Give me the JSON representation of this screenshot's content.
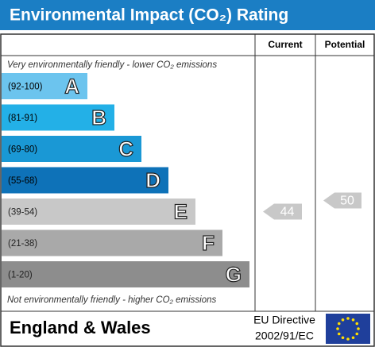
{
  "chart_data": {
    "type": "rating",
    "title": "Environmental Impact (CO₂) Rating",
    "columns": [
      "Current",
      "Potential"
    ],
    "top_note": "Very environmentally friendly - lower CO₂ emissions",
    "bottom_note": "Not environmentally friendly - higher CO₂ emissions",
    "bands": [
      {
        "range": "(92-100)",
        "letter": "A",
        "color": "#6cc4ee"
      },
      {
        "range": "(81-91)",
        "letter": "B",
        "color": "#23b0e7"
      },
      {
        "range": "(69-80)",
        "letter": "C",
        "color": "#1a98d5"
      },
      {
        "range": "(55-68)",
        "letter": "D",
        "color": "#0e72b8"
      },
      {
        "range": "(39-54)",
        "letter": "E",
        "color": "#c8c8c8"
      },
      {
        "range": "(21-38)",
        "letter": "F",
        "color": "#a9a9a9"
      },
      {
        "range": "(1-20)",
        "letter": "G",
        "color": "#8d8d8d"
      }
    ],
    "current": 44,
    "potential": 50,
    "footer": {
      "region": "England & Wales",
      "directive": [
        "EU Directive",
        "2002/91/EC"
      ]
    }
  }
}
